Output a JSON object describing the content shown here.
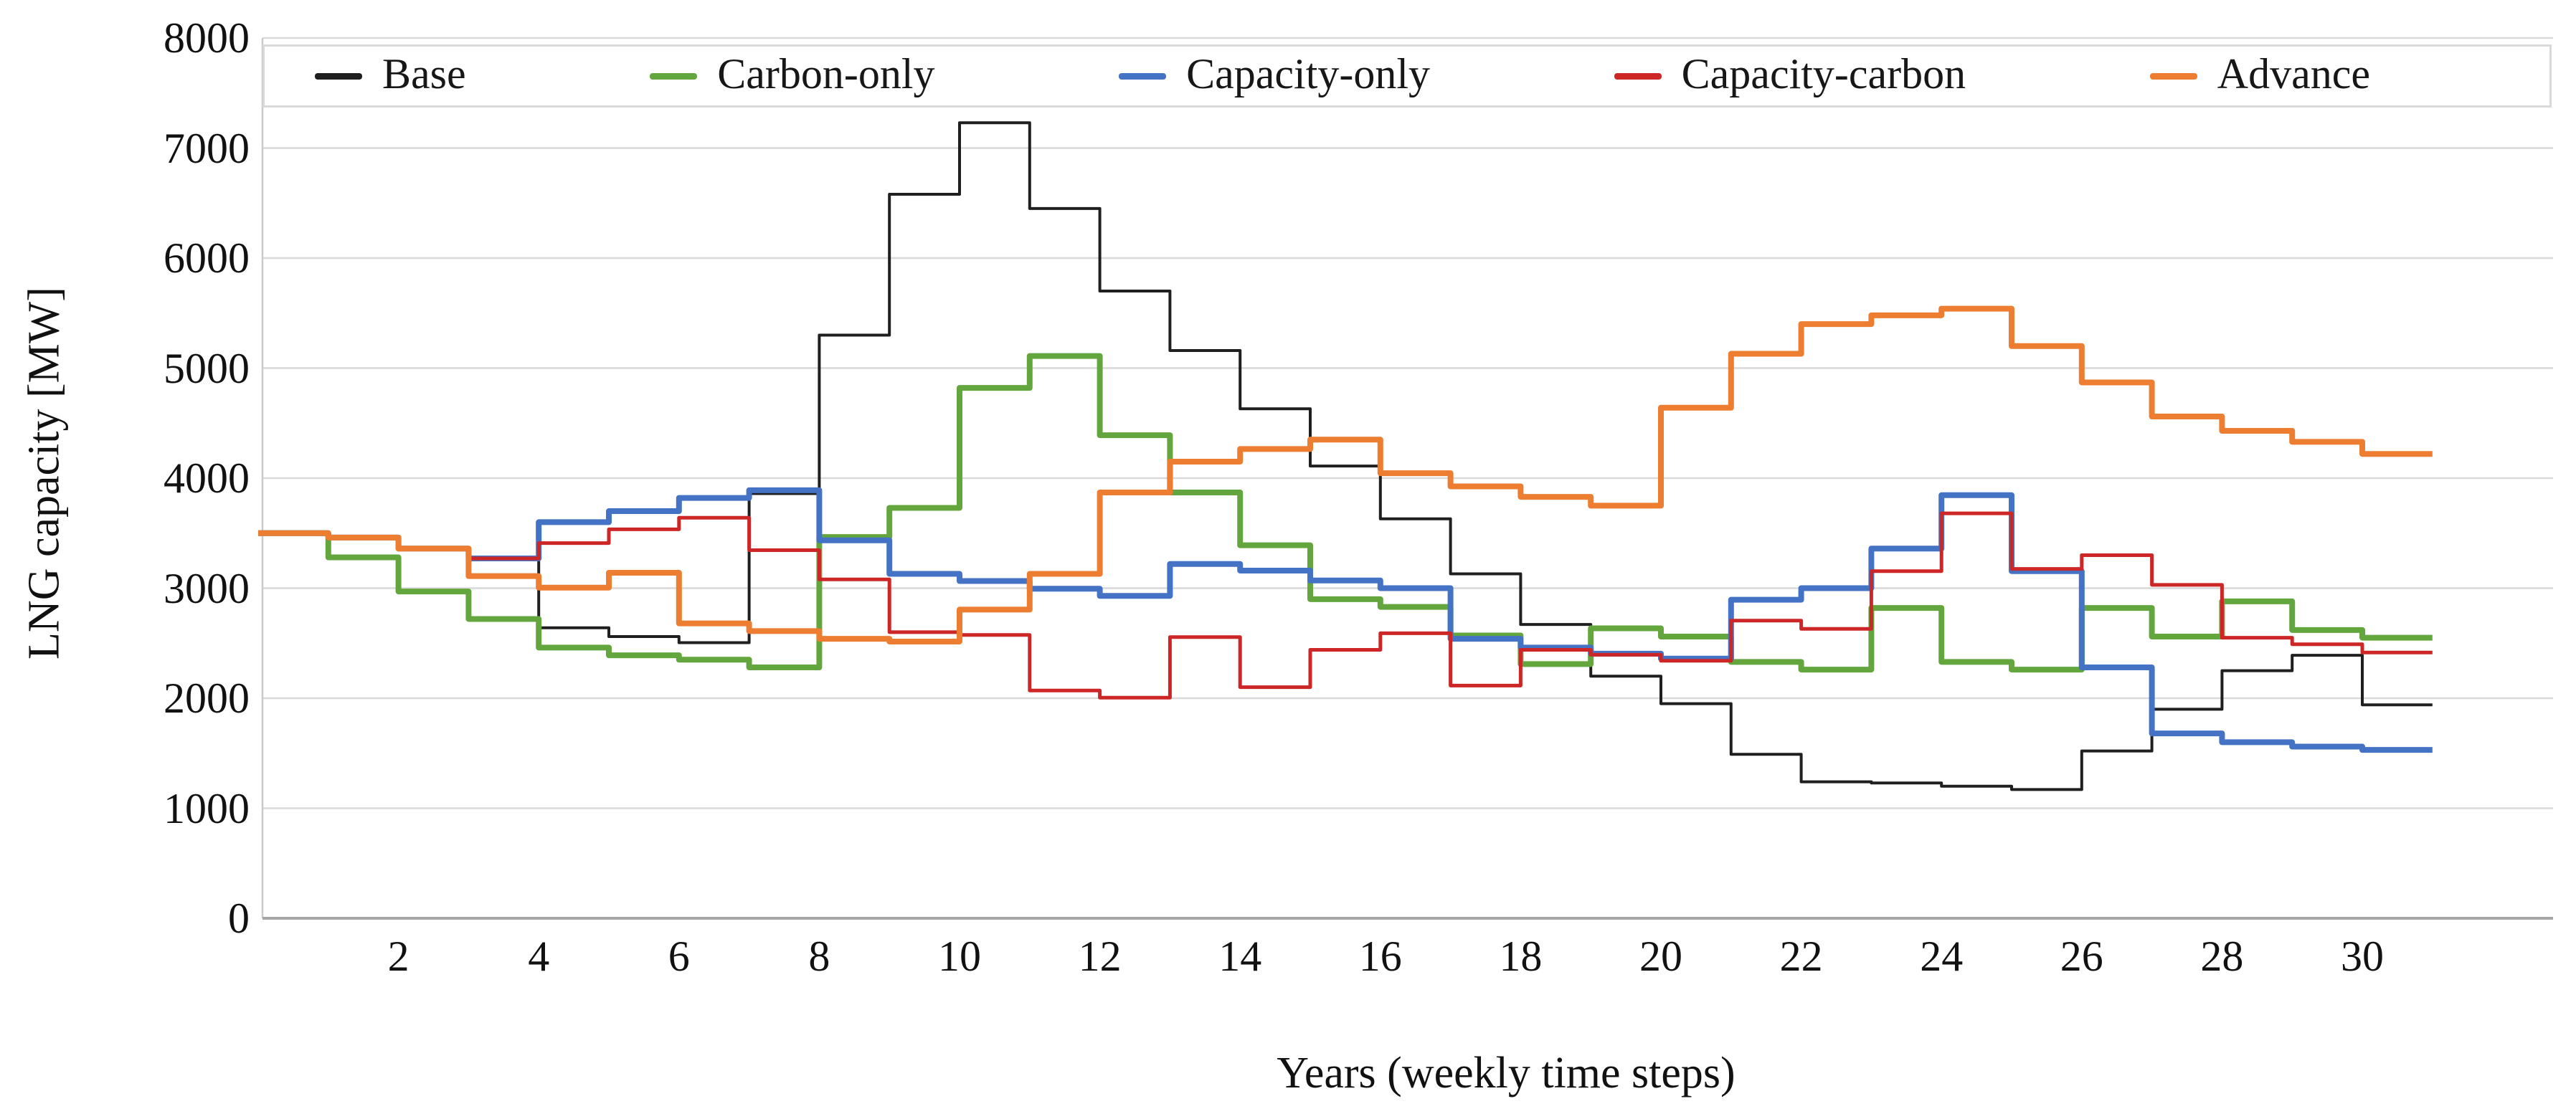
{
  "chart_data": {
    "type": "line",
    "subtype": "step",
    "title": "",
    "x_axis": {
      "label": "Years (weekly time steps)",
      "ticks": [
        2,
        4,
        6,
        8,
        10,
        12,
        14,
        16,
        18,
        20,
        22,
        24,
        26,
        28,
        30
      ],
      "min": 0,
      "max": 32.7,
      "grid": false
    },
    "y_axis": {
      "label": "LNG capacity [MW]",
      "ticks": [
        0,
        1000,
        2000,
        3000,
        4000,
        5000,
        6000,
        7000,
        8000
      ],
      "min": 0,
      "max": 8000,
      "grid": true
    },
    "legend_position": "top",
    "boundary_years": [
      0,
      1,
      2,
      3,
      4,
      5,
      6,
      7,
      8,
      9,
      10,
      11,
      12,
      13,
      14,
      15,
      16,
      17,
      18,
      19,
      20,
      21,
      22,
      23,
      24,
      25,
      26,
      27,
      28,
      29,
      30,
      31
    ],
    "end_year": 31,
    "series": [
      {
        "name": "Base",
        "color": "#1f1f1f",
        "width": 4,
        "values": [
          3500,
          3460,
          3360,
          3270,
          2640,
          2560,
          2505,
          3860,
          5300,
          6580,
          7230,
          6450,
          5700,
          5160,
          4630,
          4110,
          3630,
          3130,
          2670,
          2200,
          1950,
          1490,
          1240,
          1230,
          1200,
          1170,
          1520,
          1900,
          2250,
          2390,
          1940
        ]
      },
      {
        "name": "Carbon-only",
        "color": "#64a63e",
        "width": 8,
        "values": [
          3500,
          3280,
          2970,
          2720,
          2460,
          2390,
          2350,
          2280,
          3465,
          3730,
          4820,
          5110,
          4390,
          3870,
          3390,
          2900,
          2830,
          2570,
          2310,
          2635,
          2560,
          2330,
          2260,
          2820,
          2330,
          2260,
          2820,
          2560,
          2880,
          2620,
          2550
        ]
      },
      {
        "name": "Capacity-only",
        "color": "#4472c4",
        "width": 8,
        "values": [
          3500,
          3460,
          3360,
          3270,
          3600,
          3700,
          3820,
          3890,
          3435,
          3130,
          3065,
          2995,
          2930,
          3220,
          3160,
          3070,
          3000,
          2540,
          2460,
          2405,
          2360,
          2895,
          3000,
          3360,
          3845,
          3155,
          2280,
          1680,
          1600,
          1560,
          1530
        ]
      },
      {
        "name": "Capacity-carbon",
        "color": "#cc2626",
        "width": 5,
        "values": [
          3500,
          3460,
          3360,
          3270,
          3410,
          3535,
          3640,
          3345,
          3080,
          2600,
          2575,
          2070,
          2005,
          2555,
          2100,
          2440,
          2590,
          2115,
          2440,
          2395,
          2340,
          2705,
          2630,
          3155,
          3680,
          3175,
          3300,
          3030,
          2550,
          2490,
          2415
        ]
      },
      {
        "name": "Advance",
        "color": "#ed7d31",
        "width": 8,
        "values": [
          3500,
          3460,
          3360,
          3110,
          3005,
          3140,
          2680,
          2610,
          2540,
          2515,
          2805,
          3130,
          3870,
          4150,
          4265,
          4350,
          4045,
          3925,
          3830,
          3750,
          4640,
          5130,
          5400,
          5480,
          5540,
          5200,
          4870,
          4560,
          4430,
          4330,
          4220
        ]
      }
    ],
    "colors": {
      "gridline": "#d9d9d9",
      "axis_line": "#a6a6a6",
      "left_axis_line": "#c9c9c9",
      "text": "#111111"
    }
  }
}
